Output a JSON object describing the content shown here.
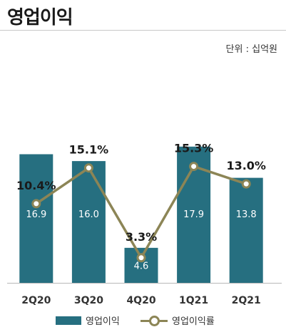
{
  "header": {
    "title": "영업이익",
    "unit": "단위 : 십억원"
  },
  "colors": {
    "bar": "#266f80",
    "line": "#8c8556",
    "axis": "#b8b8b8"
  },
  "chart_data": {
    "type": "bar",
    "categories": [
      "2Q20",
      "3Q20",
      "4Q20",
      "1Q21",
      "2Q21"
    ],
    "series": [
      {
        "name": "영업이익",
        "type": "bar",
        "values": [
          16.9,
          16.0,
          4.6,
          17.9,
          13.8
        ],
        "labels": [
          "16.9",
          "16.0",
          "4.6",
          "17.9",
          "13.8"
        ]
      },
      {
        "name": "영업이익률",
        "type": "line",
        "values": [
          10.4,
          15.1,
          3.3,
          15.3,
          13.0
        ],
        "labels": [
          "10.4%",
          "15.1%",
          "3.3%",
          "15.3%",
          "13.0%"
        ]
      }
    ],
    "ylim_bar": [
      0,
      22
    ],
    "ylim_line": [
      0,
      22
    ],
    "legend": "bottom",
    "grid": false
  }
}
